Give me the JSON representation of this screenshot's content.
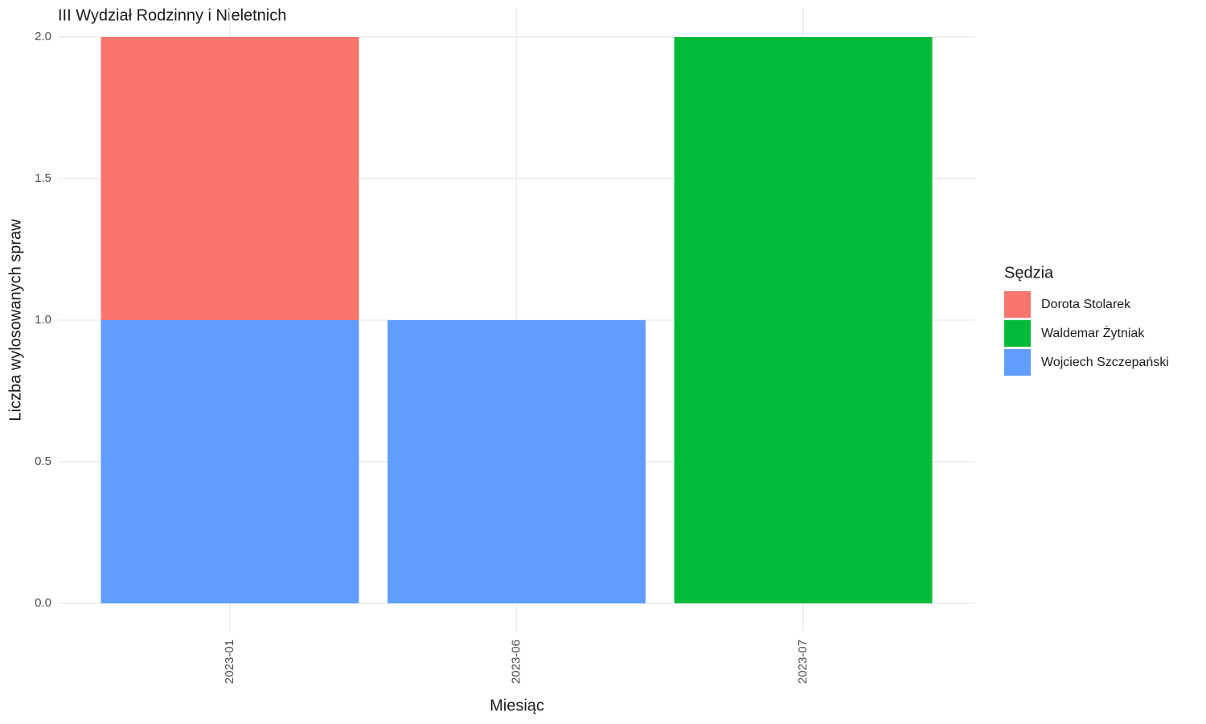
{
  "chart_data": {
    "type": "stacked_bar",
    "title": "III Wydział Rodzinny i Nieletnich",
    "x_label": "Miesiąc",
    "y_label": "Liczba wylosowanych spraw",
    "categories": [
      "2023-01",
      "2023-06",
      "2023-07"
    ],
    "series": [
      {
        "name": "Dorota Stolarek",
        "color": "#F8766D",
        "values": [
          1,
          0,
          0
        ]
      },
      {
        "name": "Waldemar Żytniak",
        "color": "#00BA38",
        "values": [
          0,
          0,
          2
        ]
      },
      {
        "name": "Wojciech Szczepański",
        "color": "#619CFF",
        "values": [
          1,
          1,
          0
        ]
      }
    ],
    "legend_title": "Sędzia",
    "ylim": [
      0,
      2
    ],
    "yticks": [
      {
        "value": 0,
        "label": "0.0"
      },
      0.5,
      {
        "value": 1,
        "label": "1.0"
      },
      1.5,
      {
        "value": 2,
        "label": "2.0"
      }
    ],
    "grid": true,
    "legend": "right"
  }
}
